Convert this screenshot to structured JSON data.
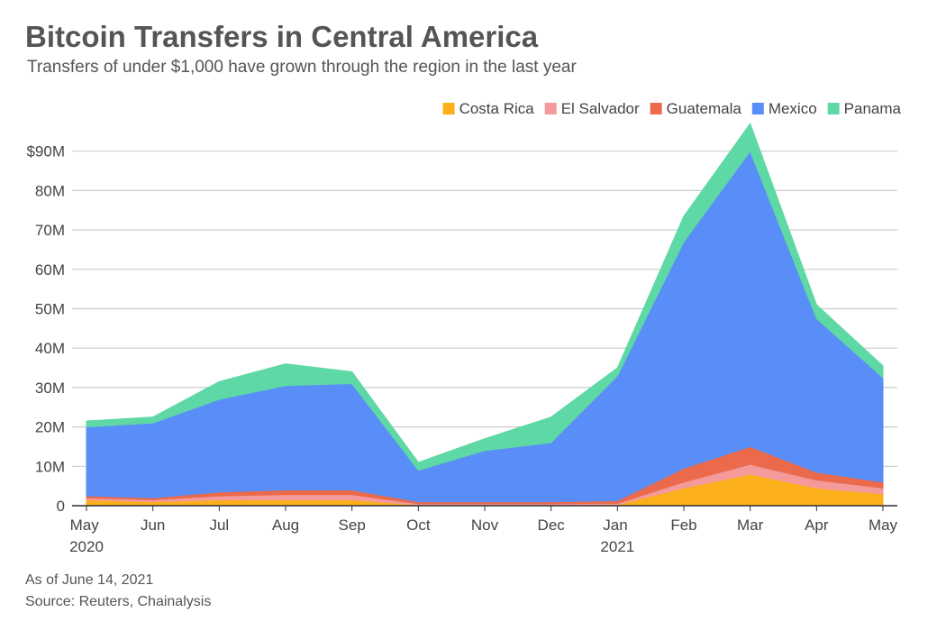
{
  "chart_data": {
    "type": "stacked_area",
    "title": "Bitcoin Transfers in Central America",
    "subtitle": "Transfers of under $1,000 have grown through the region in the last year",
    "categories": [
      "May 2020",
      "Jun",
      "Jul",
      "Aug",
      "Sep",
      "Oct",
      "Nov",
      "Dec",
      "Jan 2021",
      "Feb",
      "Mar",
      "Apr",
      "May"
    ],
    "series": [
      {
        "name": "Costa Rica",
        "color": "#fbb01b",
        "values": [
          1.5,
          1,
          1.5,
          1.5,
          1.5,
          0.2,
          0.2,
          0.2,
          0.3,
          4.5,
          8,
          4.5,
          3
        ]
      },
      {
        "name": "El Salvador",
        "color": "#f59a9b",
        "values": [
          0.5,
          0.5,
          1,
          1.3,
          1.3,
          0.3,
          0.3,
          0.3,
          0.3,
          1.5,
          2.5,
          2,
          1.5
        ]
      },
      {
        "name": "Guatemala",
        "color": "#ea6a4b",
        "values": [
          0.5,
          0.5,
          1,
          1.2,
          1.2,
          0.5,
          0.5,
          0.5,
          0.7,
          3.5,
          4.5,
          2,
          1.5
        ]
      },
      {
        "name": "Mexico",
        "color": "#598ef8",
        "values": [
          17.5,
          19,
          23.5,
          26.5,
          27,
          8,
          13,
          15,
          31.7,
          57.5,
          75,
          39,
          26.5
        ]
      },
      {
        "name": "Panama",
        "color": "#5ed8a4",
        "values": [
          1.5,
          1.5,
          4.5,
          5.5,
          3,
          2,
          3,
          6.5,
          2,
          6.5,
          7,
          3.5,
          3
        ]
      }
    ],
    "ylim": [
      0,
      100
    ],
    "yticks": [
      0,
      {
        "value": 10,
        "label": "10M"
      },
      {
        "value": 20,
        "label": "20M"
      },
      {
        "value": 30,
        "label": "30M"
      },
      {
        "value": 40,
        "label": "40M"
      },
      {
        "value": 50,
        "label": "50M"
      },
      {
        "value": 60,
        "label": "60M"
      },
      {
        "value": 70,
        "label": "70M"
      },
      {
        "value": 80,
        "label": "80M"
      },
      {
        "value": 90,
        "label": "$90M"
      }
    ],
    "grid": true,
    "legend": "top-right",
    "notes": [
      "As of June 14, 2021",
      "Source: Reuters, Chainalysis"
    ]
  }
}
